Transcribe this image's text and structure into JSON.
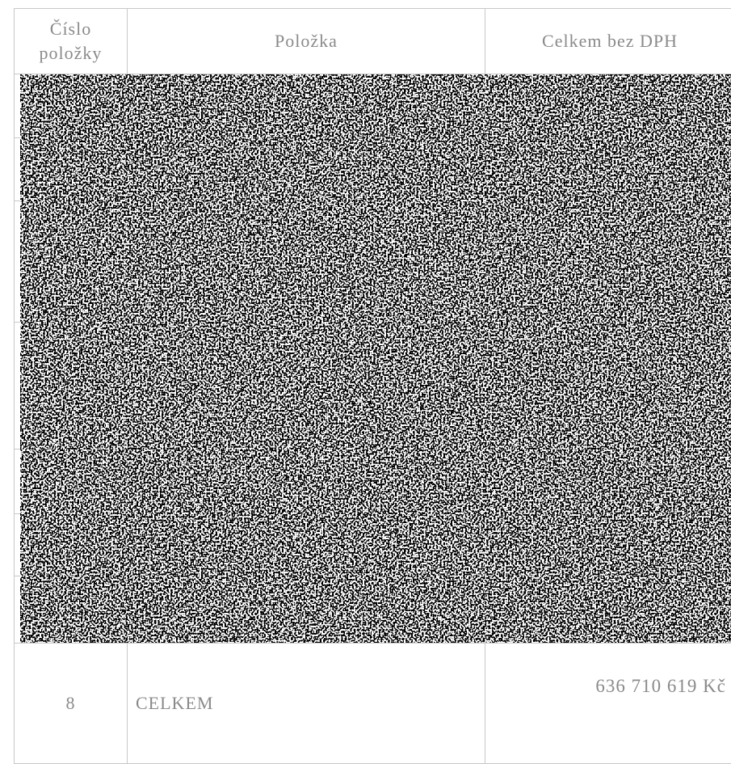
{
  "table": {
    "header": [
      "Číslo položky",
      "Položka",
      "Celkem bez DPH"
    ],
    "rows": [
      [
        "8",
        "CELKEM",
        "636 710 619 Kč"
      ]
    ]
  }
}
